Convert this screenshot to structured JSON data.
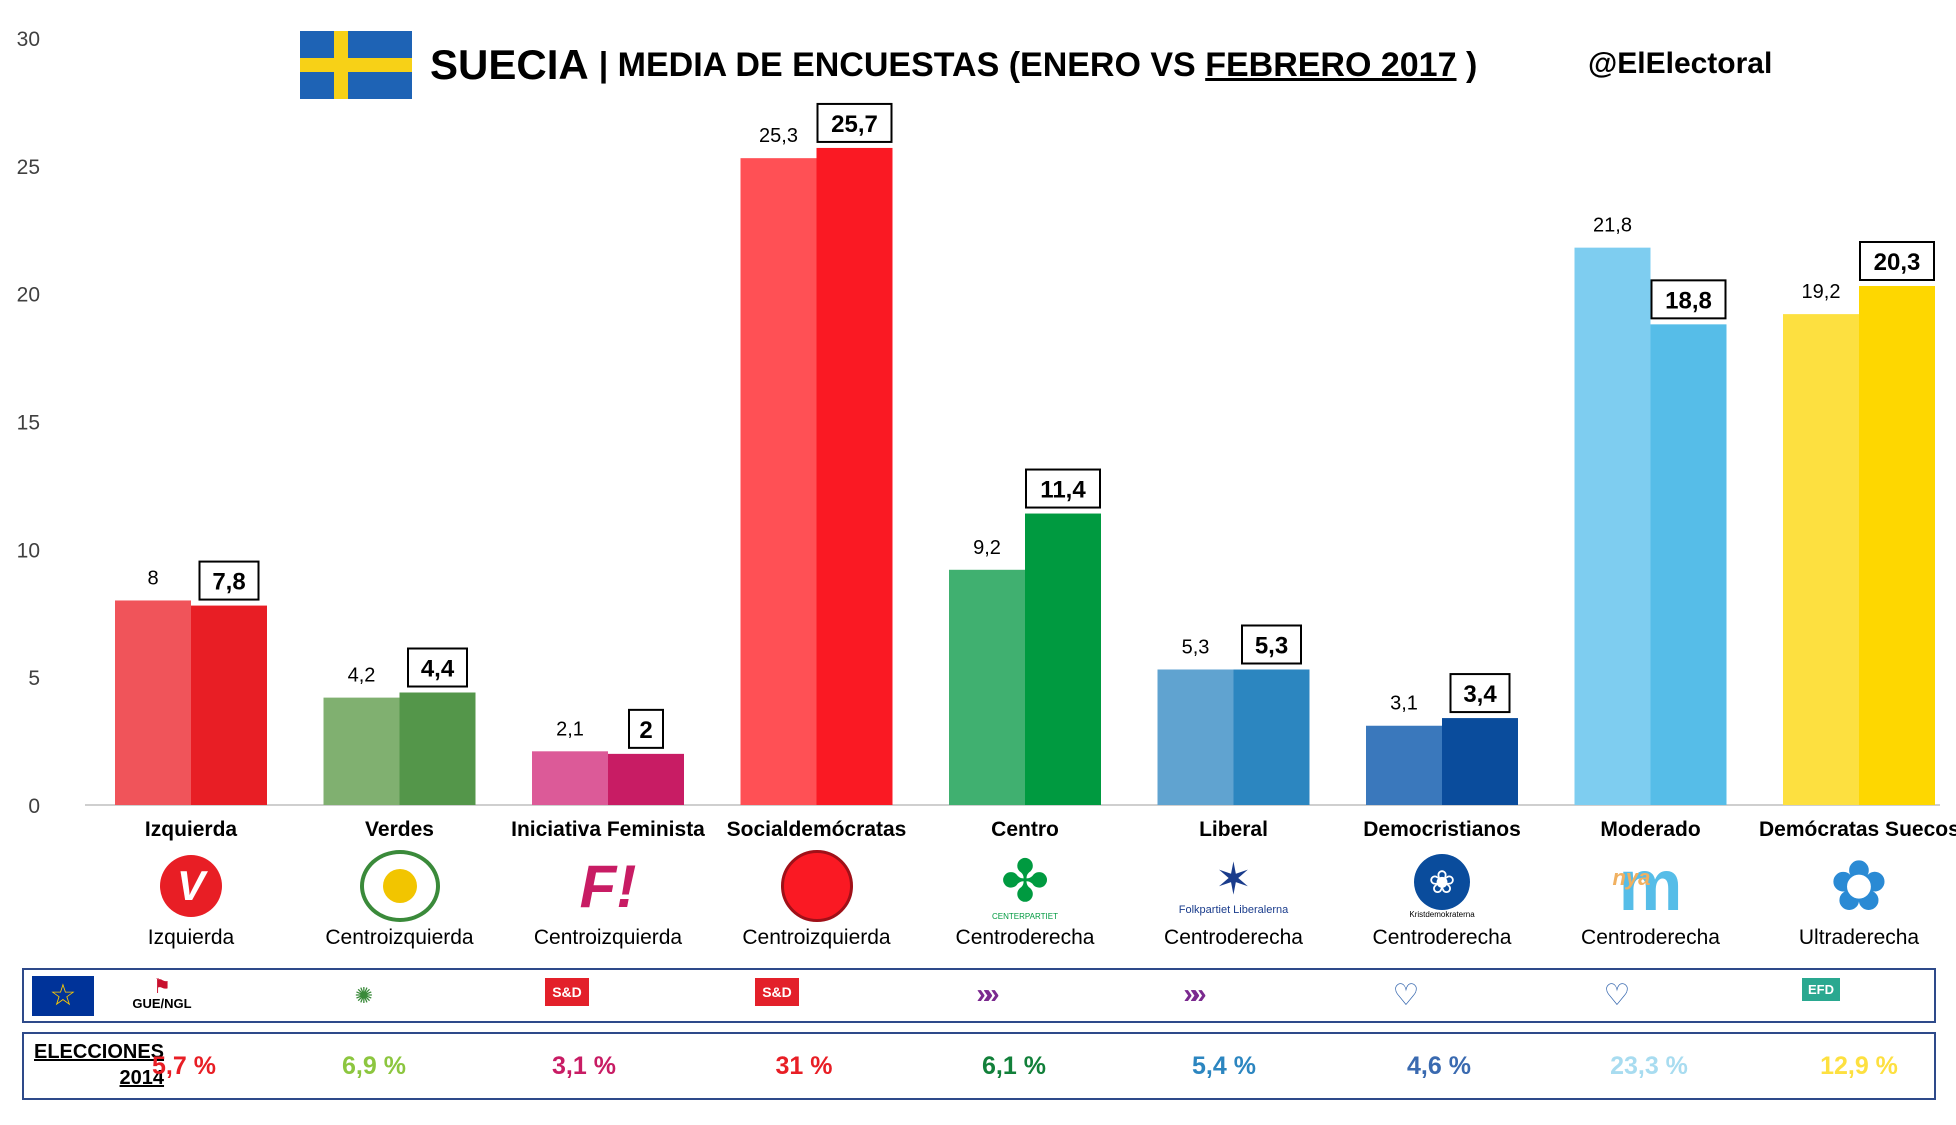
{
  "header": {
    "title": "SUECIA",
    "subtitle_prefix": "| MEDIA DE ENCUESTAS (ENERO VS ",
    "subtitle_underlined": "FEBRERO 2017",
    "subtitle_suffix": " )",
    "handle": "@ElElectoral"
  },
  "chart_data": {
    "type": "bar",
    "categories": [
      "Izquierda",
      "Verdes",
      "Iniciativa Feminista",
      "Socialdemócratas",
      "Centro",
      "Liberal",
      "Democristianos",
      "Moderado",
      "Demócratas Suecos"
    ],
    "series": [
      {
        "values": [
          8,
          4.2,
          2.1,
          25.3,
          9.2,
          5.3,
          3.1,
          21.8,
          19.2
        ],
        "labels": [
          "8",
          "4,2",
          "2,1",
          "25,3",
          "9,2",
          "5,3",
          "3,1",
          "21,8",
          "19,2"
        ],
        "colors": [
          "#f0545a",
          "#80b070",
          "#dc5a98",
          "#ff5055",
          "#40b070",
          "#60a3d0",
          "#3a78bc",
          "#7ecdf0",
          "#fde040"
        ]
      },
      {
        "values": [
          7.8,
          4.4,
          2,
          25.7,
          11.4,
          5.3,
          3.4,
          18.8,
          20.3
        ],
        "labels": [
          "7,8",
          "4,4",
          "2",
          "25,7",
          "11,4",
          "5,3",
          "3,4",
          "18,8",
          "20,3"
        ],
        "colors": [
          "#e81e25",
          "#54964a",
          "#c81c64",
          "#fa1923",
          "#009a40",
          "#2c86c0",
          "#0a4c9c",
          "#56bde8",
          "#fed700"
        ]
      }
    ],
    "yticks": [
      "0",
      "5",
      "10",
      "15",
      "20",
      "25",
      "30"
    ],
    "ylim": [
      0,
      30
    ],
    "grid": false,
    "legend": "none"
  },
  "parties": [
    {
      "name": "Izquierda",
      "ideology": "Izquierda",
      "logo_icon": "v-rose-icon",
      "logo_text": "V",
      "color": "#e81e25"
    },
    {
      "name": "Verdes",
      "ideology": "Centroizquierda",
      "logo_icon": "dandelion-icon",
      "logo_text": "",
      "color": "#54964a"
    },
    {
      "name": "Iniciativa Feminista",
      "ideology": "Centroizquierda",
      "logo_icon": "f-exclamation-icon",
      "logo_text": "F!",
      "color": "#c81c64"
    },
    {
      "name": "Socialdemócratas",
      "ideology": "Centroizquierda",
      "logo_icon": "rose-icon",
      "logo_text": "",
      "color": "#fa1923"
    },
    {
      "name": "Centro",
      "ideology": "Centroderecha",
      "logo_icon": "clover-icon",
      "logo_text": "CENTERPARTIET",
      "color": "#009a40"
    },
    {
      "name": "Liberal",
      "ideology": "Centroderecha",
      "logo_icon": "star-icon",
      "logo_text": "Folkpartiet Liberalerna",
      "color": "#1a3c8c"
    },
    {
      "name": "Democristianos",
      "ideology": "Centroderecha",
      "logo_icon": "flower-circle-icon",
      "logo_text": "Kristdemokraterna",
      "color": "#0a4c9c"
    },
    {
      "name": "Moderado",
      "ideology": "Centroderecha",
      "logo_icon": "m-logo-icon",
      "logo_text": "m",
      "logo_sub": "nya",
      "color": "#56bde8"
    },
    {
      "name": "Demócratas Suecos",
      "ideology": "Ultraderecha",
      "logo_icon": "blue-flower-icon",
      "logo_text": "",
      "color": "#2a8ad4"
    }
  ],
  "eu_groups": [
    {
      "label": "GUE/NGL",
      "icon": "gue-ngl-icon"
    },
    {
      "label": "",
      "icon": "greens-efa-icon"
    },
    {
      "label": "S&D",
      "icon": "sd-icon"
    },
    {
      "label": "S&D",
      "icon": "sd-icon"
    },
    {
      "label": "»",
      "icon": "alde-chevron-icon"
    },
    {
      "label": "»",
      "icon": "alde-chevron-icon"
    },
    {
      "label": "",
      "icon": "epp-heart-icon"
    },
    {
      "label": "",
      "icon": "epp-heart-icon"
    },
    {
      "label": "EFD",
      "icon": "efd-icon"
    }
  ],
  "elections": {
    "label_line1": "ELECCIONES",
    "label_line2": "2014",
    "values": [
      "5,7 %",
      "6,9 %",
      "3,1 %",
      "31 %",
      "6,1 %",
      "5,4 %",
      "4,6 %",
      "23,3 %",
      "12,9 %"
    ],
    "colors": [
      "#e81e25",
      "#8cc63f",
      "#c81c64",
      "#e81e25",
      "#12803a",
      "#2c86c0",
      "#3a6ab0",
      "#a8dcf0",
      "#fde040"
    ]
  }
}
